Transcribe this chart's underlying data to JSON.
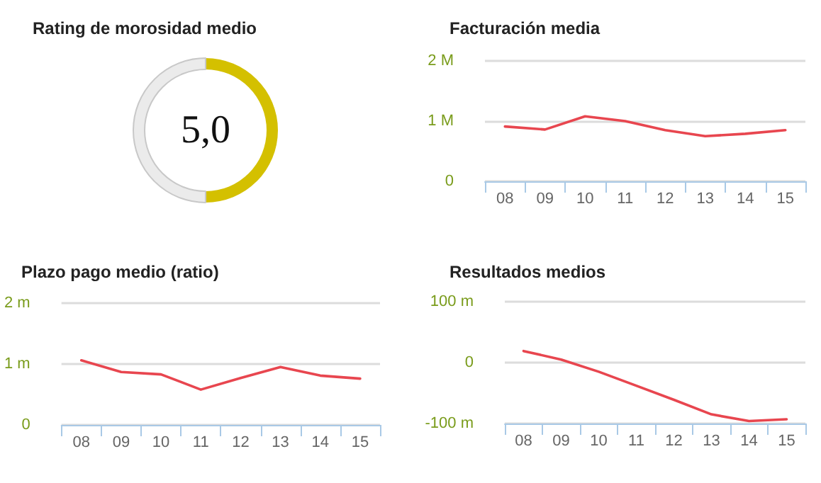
{
  "chart_data": [
    {
      "type": "donut",
      "title": "Rating de morosidad medio",
      "categories": [
        null,
        null
      ],
      "values": [
        50,
        50
      ],
      "colors": [
        "#d4c000",
        "#ebebeb"
      ],
      "annotations": [
        "5,0"
      ]
    },
    {
      "type": "line",
      "title": "Facturación media",
      "categories": [
        "08",
        "09",
        "10",
        "11",
        "12",
        "13",
        "14",
        "15"
      ],
      "values": [
        0.91,
        0.86,
        1.08,
        1.0,
        0.85,
        0.75,
        0.79,
        0.85
      ],
      "color": "#e8464f",
      "ylim": [
        0,
        2
      ],
      "yticks": [
        {
          "value": 0,
          "label": "0"
        },
        {
          "value": 1,
          "label": "1 M"
        },
        {
          "value": 2,
          "label": "2 M"
        }
      ],
      "grid": "y",
      "marker": "none"
    },
    {
      "type": "line",
      "title": "Plazo pago medio (ratio)",
      "categories": [
        "08",
        "09",
        "10",
        "11",
        "12",
        "13",
        "14",
        "15"
      ],
      "values": [
        1.06,
        0.87,
        0.83,
        0.58,
        0.77,
        0.95,
        0.81,
        0.76
      ],
      "color": "#e8464f",
      "ylim": [
        0,
        2
      ],
      "yticks": [
        {
          "value": 0,
          "label": "0"
        },
        {
          "value": 1,
          "label": "1 m"
        },
        {
          "value": 2,
          "label": "2 m"
        }
      ],
      "grid": "y",
      "marker": "none"
    },
    {
      "type": "line",
      "title": "Resultados medios",
      "categories": [
        "08",
        "09",
        "10",
        "11",
        "12",
        "13",
        "14",
        "15"
      ],
      "values": [
        19,
        5,
        -15,
        -38,
        -61,
        -85,
        -96,
        -93
      ],
      "color": "#e8464f",
      "ylim": [
        -100,
        100
      ],
      "yticks": [
        {
          "value": -100,
          "label": "-100 m"
        },
        {
          "value": 0,
          "label": "0"
        },
        {
          "value": 100,
          "label": "100 m"
        }
      ],
      "grid": "y",
      "marker": "none"
    }
  ]
}
